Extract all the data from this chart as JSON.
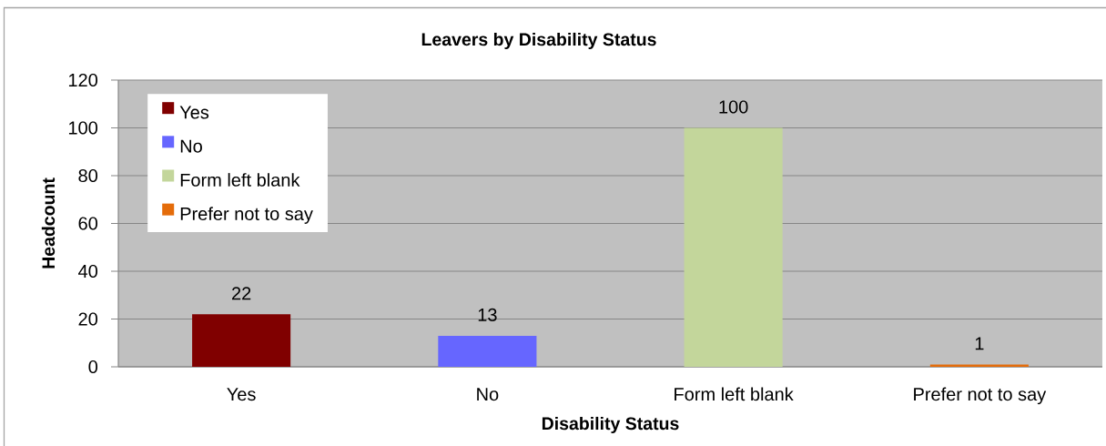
{
  "chart_data": {
    "type": "bar",
    "title": "Leavers by Disability Status",
    "xlabel": "Disability Status",
    "ylabel": "Headcount",
    "categories": [
      "Yes",
      "No",
      "Form left blank",
      "Prefer not to say"
    ],
    "series": [
      {
        "name": "Yes",
        "color": "#800000",
        "values": [
          22,
          null,
          null,
          null
        ]
      },
      {
        "name": "No",
        "color": "#6666ff",
        "values": [
          null,
          13,
          null,
          null
        ]
      },
      {
        "name": "Form left blank",
        "color": "#c3d69b",
        "values": [
          null,
          null,
          100,
          null
        ]
      },
      {
        "name": "Prefer not to say",
        "color": "#e46c0a",
        "values": [
          null,
          null,
          null,
          1
        ]
      }
    ],
    "ylim": [
      0,
      120
    ],
    "yticks": [
      0,
      20,
      40,
      60,
      80,
      100,
      120
    ],
    "grid": "y",
    "legend": "top left",
    "data_labels": true
  }
}
